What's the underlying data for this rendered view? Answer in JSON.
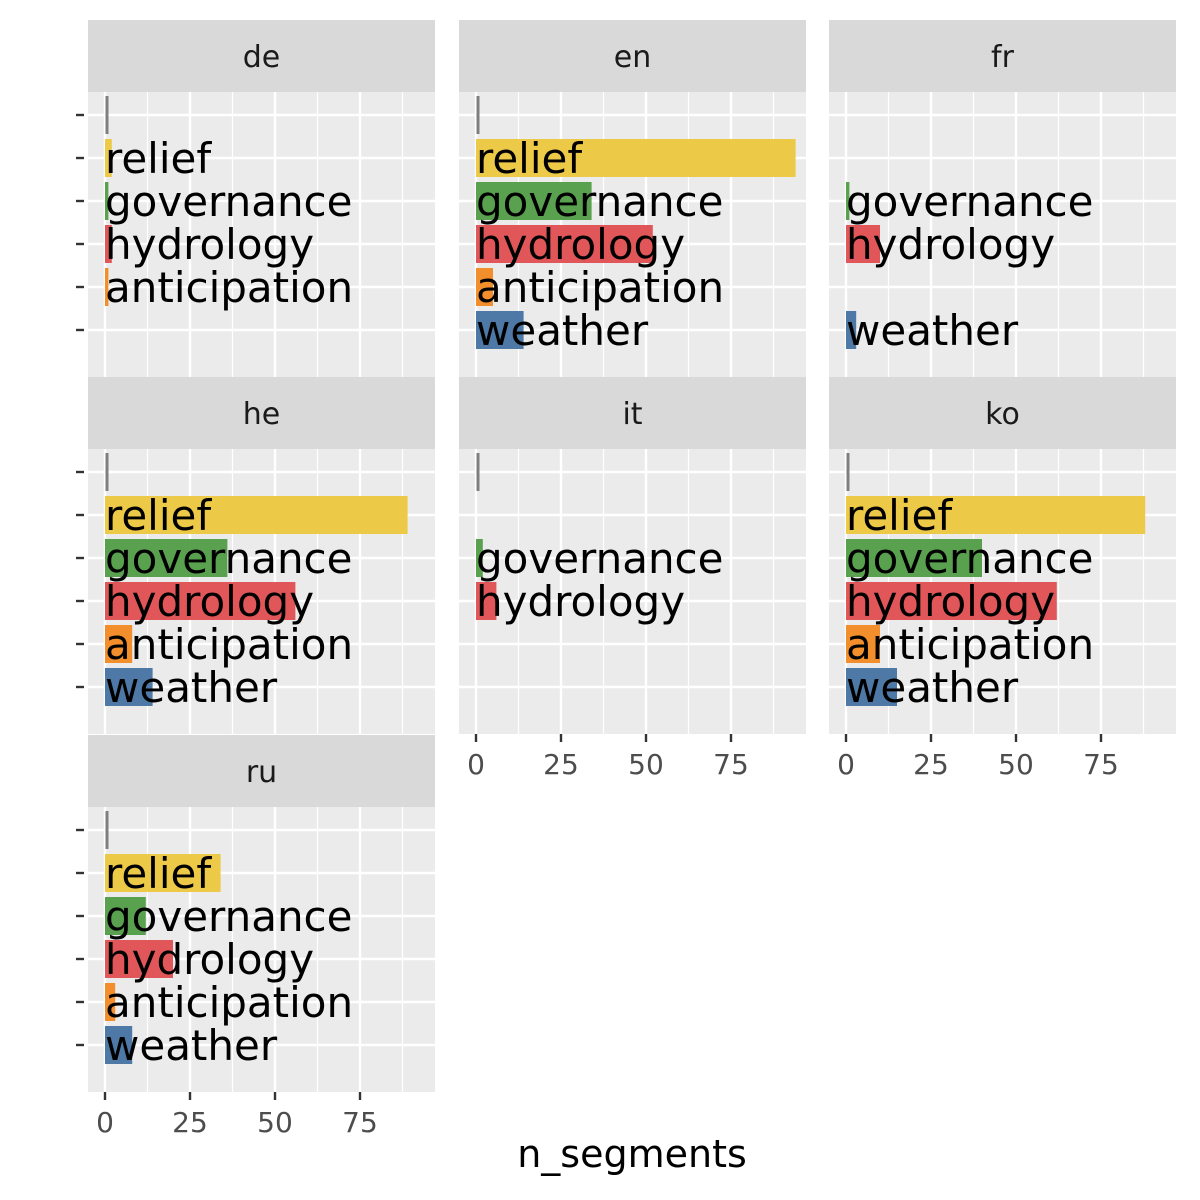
{
  "chart_data": {
    "type": "bar",
    "orientation": "horizontal",
    "facet_layout": "3 columns",
    "xlabel": "n_segments",
    "ylabel": "",
    "xlim": [
      0,
      98
    ],
    "x_ticks": [
      0,
      25,
      50,
      75
    ],
    "grid": true,
    "legend": "none",
    "categories": [
      "",
      "relief",
      "governance",
      "hydrology",
      "anticipation",
      "weather"
    ],
    "category_colors": {
      "": "#7f7f7f",
      "relief": "#edc948",
      "governance": "#59a14f",
      "hydrology": "#e15759",
      "anticipation": "#f28e2b",
      "weather": "#4e79a7"
    },
    "colors": {
      "panel_background": "#ebebeb",
      "strip_background": "#d9d9d9",
      "grid": "#ffffff"
    },
    "facets": [
      {
        "label": "de",
        "values": {
          "": 1,
          "relief": 2,
          "governance": 1,
          "hydrology": 2,
          "anticipation": 1,
          "weather": null
        }
      },
      {
        "label": "en",
        "values": {
          "": 1,
          "relief": 94,
          "governance": 34,
          "hydrology": 52,
          "anticipation": 5,
          "weather": 14
        }
      },
      {
        "label": "fr",
        "values": {
          "": null,
          "relief": null,
          "governance": 1,
          "hydrology": 10,
          "anticipation": null,
          "weather": 3
        }
      },
      {
        "label": "he",
        "values": {
          "": 1,
          "relief": 89,
          "governance": 36,
          "hydrology": 56,
          "anticipation": 8,
          "weather": 14
        }
      },
      {
        "label": "it",
        "values": {
          "": 1,
          "relief": null,
          "governance": 2,
          "hydrology": 6,
          "anticipation": null,
          "weather": null
        }
      },
      {
        "label": "ko",
        "values": {
          "": 1,
          "relief": 88,
          "governance": 40,
          "hydrology": 62,
          "anticipation": 10,
          "weather": 15
        }
      },
      {
        "label": "ru",
        "values": {
          "": 1,
          "relief": 34,
          "governance": 12,
          "hydrology": 20,
          "anticipation": 3,
          "weather": 8
        }
      }
    ]
  }
}
